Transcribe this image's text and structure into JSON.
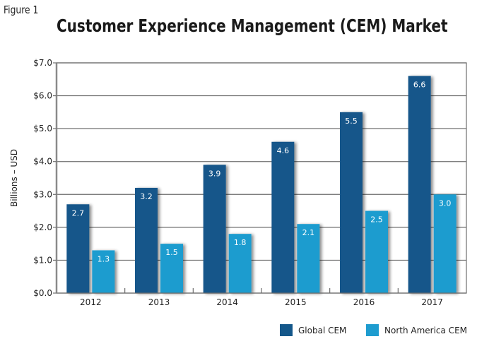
{
  "figure_label": "Figure 1",
  "chart_data": {
    "type": "bar",
    "title": "Customer Experience Management (CEM) Market",
    "xlabel": "",
    "ylabel": "Billions – USD",
    "categories": [
      "2012",
      "2013",
      "2014",
      "2015",
      "2016",
      "2017"
    ],
    "series": [
      {
        "name": "Global CEM",
        "color": "#14578a",
        "values": [
          2.7,
          3.2,
          3.9,
          4.6,
          5.5,
          6.6
        ]
      },
      {
        "name": "North America CEM",
        "color": "#1e9ccf",
        "values": [
          1.3,
          1.5,
          1.8,
          2.1,
          2.5,
          3.0
        ]
      }
    ],
    "ylim": [
      0,
      7
    ],
    "yticks": [
      0,
      1,
      2,
      3,
      4,
      5,
      6,
      7
    ],
    "ytick_labels": [
      "$0.0",
      "$1.0",
      "$2.0",
      "$3.0",
      "$4.0",
      "$5.0",
      "$6.0",
      "$7.0"
    ],
    "grid": true,
    "data_labels": true,
    "legend_position": "bottom-right"
  }
}
